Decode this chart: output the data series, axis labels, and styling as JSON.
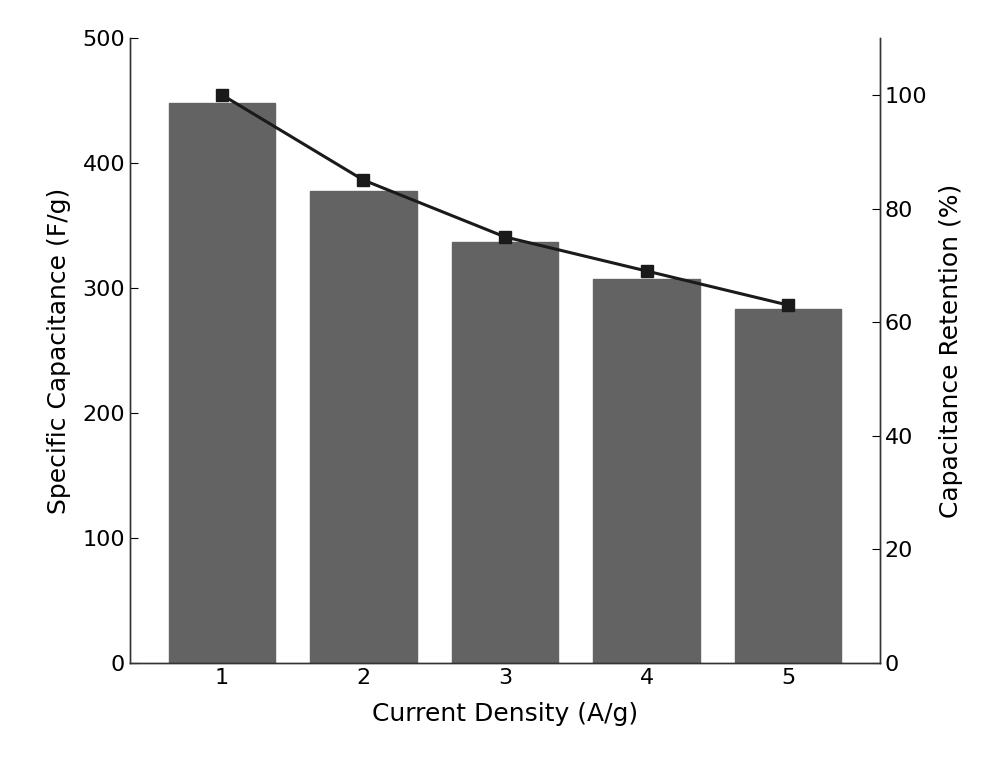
{
  "x": [
    1,
    2,
    3,
    4,
    5
  ],
  "bar_values": [
    448,
    378,
    337,
    307,
    283
  ],
  "retention_values": [
    100,
    85,
    75,
    69,
    63
  ],
  "bar_color": "#636363",
  "line_color": "#1a1a1a",
  "marker_color": "#1a1a1a",
  "xlabel": "Current Density (A/g)",
  "ylabel_left": "Specific Capacitance (F/g)",
  "ylabel_right": "Capacitance Retention (%)",
  "ylim_left": [
    0,
    500
  ],
  "ylim_right": [
    0,
    110
  ],
  "yticks_left": [
    0,
    100,
    200,
    300,
    400,
    500
  ],
  "yticks_right": [
    0,
    20,
    40,
    60,
    80,
    100
  ],
  "xticks": [
    1,
    2,
    3,
    4,
    5
  ],
  "bar_width": 0.75,
  "figsize": [
    10.0,
    7.62
  ],
  "dpi": 100,
  "xlabel_fontsize": 18,
  "ylabel_fontsize": 18,
  "tick_fontsize": 16,
  "line_width": 2.2,
  "marker_size": 9,
  "background_color": "#ffffff",
  "xlim": [
    0.35,
    5.65
  ]
}
